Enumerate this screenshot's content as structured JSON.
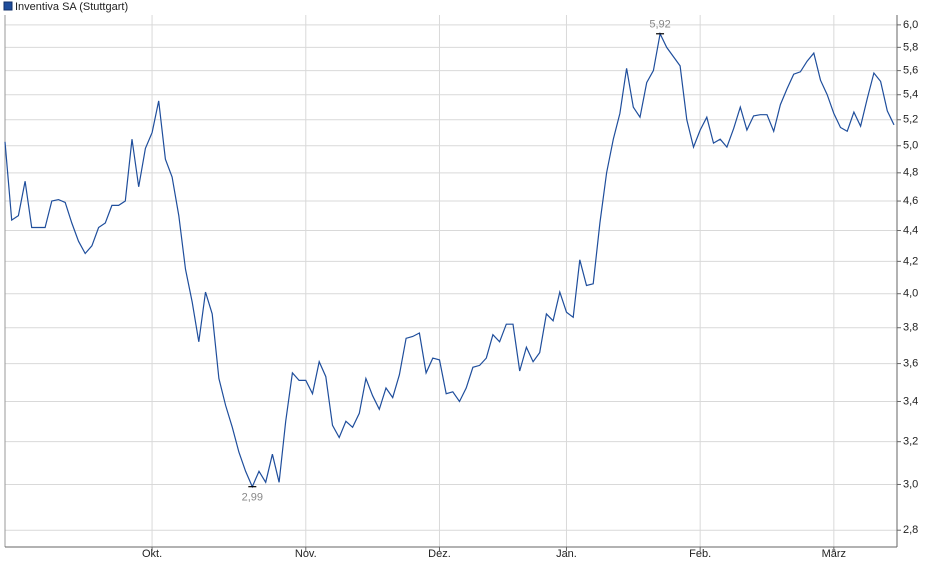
{
  "chart_data": {
    "type": "line",
    "log_scale": true,
    "grid": true,
    "legend": "top-left",
    "categories": [
      null,
      null,
      null,
      null,
      null,
      null,
      null,
      null,
      null,
      null,
      null,
      null,
      null,
      null,
      null,
      null,
      null,
      null,
      null,
      null,
      null,
      null,
      "Okt.",
      null,
      null,
      null,
      null,
      null,
      null,
      null,
      null,
      null,
      null,
      null,
      null,
      null,
      null,
      null,
      null,
      null,
      null,
      null,
      null,
      null,
      null,
      "Nov.",
      null,
      null,
      null,
      null,
      null,
      null,
      null,
      null,
      null,
      null,
      null,
      null,
      null,
      null,
      null,
      null,
      null,
      null,
      null,
      "Dez.",
      null,
      null,
      null,
      null,
      null,
      null,
      null,
      null,
      null,
      null,
      null,
      null,
      null,
      null,
      null,
      null,
      null,
      null,
      "Jan.",
      null,
      null,
      null,
      null,
      null,
      null,
      null,
      null,
      null,
      null,
      null,
      null,
      null,
      null,
      null,
      null,
      null,
      null,
      null,
      "Feb.",
      null,
      null,
      null,
      null,
      null,
      null,
      null,
      null,
      null,
      null,
      null,
      null,
      null,
      null,
      null,
      null,
      null,
      null,
      null,
      "März",
      null,
      null,
      null,
      null,
      null,
      null,
      null,
      null,
      null
    ],
    "series": [
      {
        "name": "Inventiva SA (Stuttgart)",
        "color": "#1f4e9c",
        "values": [
          5.03,
          4.47,
          4.5,
          4.74,
          4.42,
          4.42,
          4.42,
          4.6,
          4.61,
          4.59,
          4.45,
          4.33,
          4.25,
          4.3,
          4.42,
          4.45,
          4.57,
          4.57,
          4.6,
          5.05,
          4.7,
          4.98,
          5.1,
          5.35,
          4.9,
          4.77,
          4.5,
          4.15,
          3.95,
          3.72,
          4.01,
          3.88,
          3.52,
          3.38,
          3.27,
          3.15,
          3.06,
          2.99,
          3.06,
          3.01,
          3.14,
          3.01,
          3.3,
          3.55,
          3.51,
          3.51,
          3.44,
          3.61,
          3.53,
          3.28,
          3.22,
          3.3,
          3.27,
          3.34,
          3.52,
          3.43,
          3.36,
          3.47,
          3.42,
          3.54,
          3.74,
          3.75,
          3.77,
          3.55,
          3.63,
          3.62,
          3.44,
          3.45,
          3.4,
          3.47,
          3.58,
          3.59,
          3.63,
          3.76,
          3.72,
          3.82,
          3.82,
          3.56,
          3.69,
          3.61,
          3.66,
          3.88,
          3.84,
          4.01,
          3.89,
          3.86,
          4.21,
          4.05,
          4.06,
          4.45,
          4.8,
          5.05,
          5.25,
          5.62,
          5.3,
          5.22,
          5.5,
          5.6,
          5.92,
          5.8,
          5.72,
          5.64,
          5.2,
          4.99,
          5.12,
          5.22,
          5.02,
          5.05,
          4.99,
          5.13,
          5.3,
          5.12,
          5.23,
          5.24,
          5.24,
          5.11,
          5.32,
          5.45,
          5.57,
          5.59,
          5.68,
          5.75,
          5.52,
          5.4,
          5.25,
          5.14,
          5.11,
          5.26,
          5.15,
          5.37,
          5.58,
          5.51,
          5.27,
          5.16
        ]
      }
    ],
    "annotations": [
      {
        "text": "5,92",
        "value": 5.92
      },
      {
        "text": "2,99",
        "value": 2.99
      }
    ],
    "ylim": [
      2.73,
      6.09
    ],
    "yticks": [
      {
        "value": 2.8,
        "label": "2,8"
      },
      {
        "value": 3.0,
        "label": "3,0"
      },
      {
        "value": 3.2,
        "label": "3,2"
      },
      {
        "value": 3.4,
        "label": "3,4"
      },
      {
        "value": 3.6,
        "label": "3,6"
      },
      {
        "value": 3.8,
        "label": "3,8"
      },
      {
        "value": 4.0,
        "label": "4,0"
      },
      {
        "value": 4.2,
        "label": "4,2"
      },
      {
        "value": 4.4,
        "label": "4,4"
      },
      {
        "value": 4.6,
        "label": "4,6"
      },
      {
        "value": 4.8,
        "label": "4,8"
      },
      {
        "value": 5.0,
        "label": "5,0"
      },
      {
        "value": 5.2,
        "label": "5,2"
      },
      {
        "value": 5.4,
        "label": "5,4"
      },
      {
        "value": 5.6,
        "label": "5,6"
      },
      {
        "value": 5.8,
        "label": "5,8"
      },
      {
        "value": 6.0,
        "label": "6,0"
      }
    ]
  }
}
